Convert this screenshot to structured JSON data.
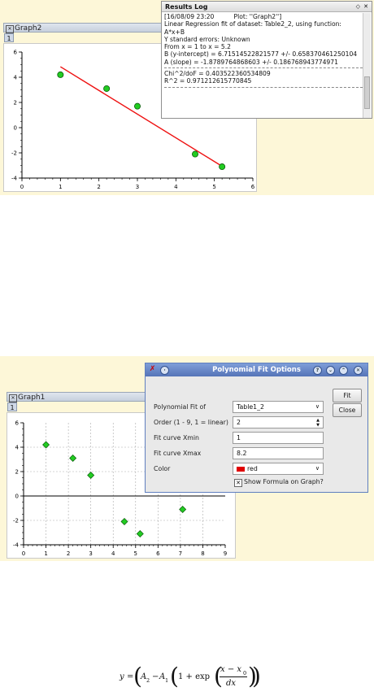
{
  "top": {
    "graph_window_title": "Graph2",
    "layer_tab": "1",
    "chart_data": {
      "type": "scatter",
      "title": "",
      "xlabel": "",
      "ylabel": "",
      "xlim": [
        0,
        6
      ],
      "ylim": [
        -4,
        6
      ],
      "x_ticks": [
        "0",
        "1",
        "2",
        "3",
        "4",
        "5",
        "6"
      ],
      "y_ticks": [
        "-4",
        "-2",
        "0",
        "2",
        "4",
        "6"
      ],
      "grid": false,
      "series": [
        {
          "x": [
            1,
            2.2,
            3,
            4.5,
            5.2
          ],
          "y": [
            4.2,
            3.1,
            1.7,
            -2.1,
            -3.1
          ],
          "color": "#22cc22"
        }
      ],
      "fit_line": {
        "x": [
          1,
          5.2
        ],
        "y": [
          4.833,
          -3.064
        ],
        "color": "#ee1111"
      }
    },
    "log": {
      "title": "Results Log",
      "lines": [
        "[16/08/09 23:20          Plot: ''Graph2'']",
        "Linear Regression fit of dataset: Table2_2, using function:",
        "A*x+B",
        "Y standard errors: Unknown",
        "From x = 1 to x = 5.2",
        "B (y-intercept) = 6.71514522821577 +/- 0.658370461250104",
        "A (slope) = -1.8789764868603 +/- 0.186768943774971"
      ],
      "lines2": [
        "Chi^2/doF = 0.403522360534809",
        "R^2 = 0.971212615770845"
      ]
    }
  },
  "bottom": {
    "graph_window_title": "Graph1",
    "layer_tab": "1",
    "chart_data": {
      "type": "scatter",
      "title": "",
      "xlabel": "",
      "ylabel": "",
      "xlim": [
        0,
        9
      ],
      "ylim": [
        -4,
        6
      ],
      "x_ticks": [
        "0",
        "1",
        "2",
        "3",
        "4",
        "5",
        "6",
        "7",
        "8",
        "9"
      ],
      "y_ticks": [
        "-4",
        "-2",
        "0",
        "2",
        "4",
        "6"
      ],
      "grid": true,
      "series": [
        {
          "x": [
            1,
            2.2,
            3,
            4.5,
            5.2,
            7.1
          ],
          "y": [
            4.2,
            3.1,
            1.7,
            -2.1,
            -3.1,
            -1.1
          ],
          "color": "#22cc22"
        }
      ]
    },
    "dialog": {
      "title": "Polynomial Fit Options",
      "fields": {
        "fit_of_label": "Polynomial Fit of",
        "fit_of_value": "Table1_2",
        "order_label": "Order (1 - 9, 1 = linear)",
        "order_value": "2",
        "xmin_label": "Fit curve Xmin",
        "xmin_value": "1",
        "xmax_label": "Fit curve Xmax",
        "xmax_value": "8.2",
        "color_label": "Color",
        "color_value": "red",
        "show_formula_label": "Show Formula on Graph?"
      },
      "buttons": {
        "fit": "Fit",
        "close": "Close"
      }
    }
  },
  "formula": {
    "y": "y",
    "eq": "=",
    "a2": "A",
    "a2_sub": "2",
    "minus": "−",
    "a1": "A",
    "a1_sub": "1",
    "one_plus": "1 + exp",
    "num": "x − x",
    "num_sub": "0",
    "den": "dx"
  }
}
